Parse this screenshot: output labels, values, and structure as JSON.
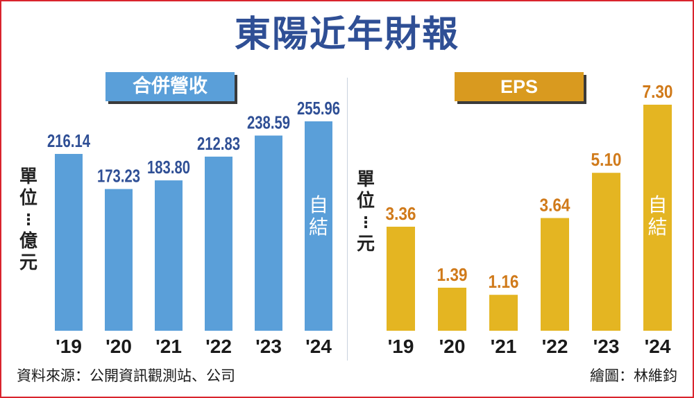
{
  "title": "東陽近年財報",
  "source": "資料來源：公開資訊觀測站、公司",
  "credit": "繪圖：林維鈞",
  "colors": {
    "revenue_bar": "#5a9fd9",
    "revenue_label": "#2f4f95",
    "eps_bar": "#e4b522",
    "eps_label": "#d07a1a",
    "title": "#2f4f95",
    "frame": "#d9232d"
  },
  "chart_data": [
    {
      "type": "bar",
      "title": "合併營收",
      "unit": "單位：億元",
      "categories": [
        "'19",
        "'20",
        "'21",
        "'22",
        "'23",
        "'24"
      ],
      "values": [
        216.14,
        173.23,
        183.8,
        212.83,
        238.59,
        255.96
      ],
      "value_labels": [
        "216.14",
        "173.23",
        "183.80",
        "212.83",
        "238.59",
        "255.96"
      ],
      "annotation": {
        "category": "'24",
        "text": "自結"
      }
    },
    {
      "type": "bar",
      "title": "EPS",
      "unit": "單位：元",
      "categories": [
        "'19",
        "'20",
        "'21",
        "'22",
        "'23",
        "'24"
      ],
      "values": [
        3.36,
        1.39,
        1.16,
        3.64,
        5.1,
        7.3
      ],
      "value_labels": [
        "3.36",
        "1.39",
        "1.16",
        "3.64",
        "5.10",
        "7.30"
      ],
      "annotation": {
        "category": "'24",
        "text": "自結"
      }
    }
  ]
}
